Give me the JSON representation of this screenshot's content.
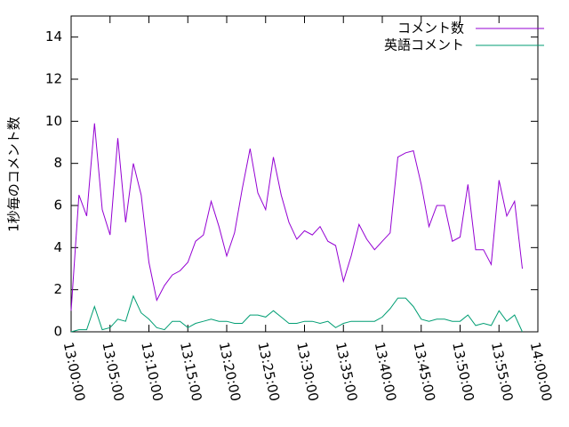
{
  "chart_data": {
    "type": "line",
    "y_label": "1秒毎のコメント数",
    "x": [
      "13:00:00",
      "13:01:00",
      "13:02:00",
      "13:03:00",
      "13:04:00",
      "13:05:00",
      "13:06:00",
      "13:07:00",
      "13:08:00",
      "13:09:00",
      "13:10:00",
      "13:11:00",
      "13:12:00",
      "13:13:00",
      "13:14:00",
      "13:15:00",
      "13:16:00",
      "13:17:00",
      "13:18:00",
      "13:19:00",
      "13:20:00",
      "13:21:00",
      "13:22:00",
      "13:23:00",
      "13:24:00",
      "13:25:00",
      "13:26:00",
      "13:27:00",
      "13:28:00",
      "13:29:00",
      "13:30:00",
      "13:31:00",
      "13:32:00",
      "13:33:00",
      "13:34:00",
      "13:35:00",
      "13:36:00",
      "13:37:00",
      "13:38:00",
      "13:39:00",
      "13:40:00",
      "13:41:00",
      "13:42:00",
      "13:43:00",
      "13:44:00",
      "13:45:00",
      "13:46:00",
      "13:47:00",
      "13:48:00",
      "13:49:00",
      "13:50:00",
      "13:51:00",
      "13:52:00",
      "13:53:00",
      "13:54:00",
      "13:55:00",
      "13:56:00",
      "13:57:00",
      "13:58:00"
    ],
    "series": [
      {
        "name": "コメント数",
        "color": "#9400d3",
        "values": [
          1.0,
          6.5,
          5.5,
          9.9,
          5.8,
          4.6,
          9.2,
          5.2,
          8.0,
          6.5,
          3.3,
          1.5,
          2.2,
          2.7,
          2.9,
          3.3,
          4.3,
          4.6,
          6.2,
          5.0,
          3.6,
          4.7,
          6.8,
          8.7,
          6.6,
          5.8,
          8.3,
          6.5,
          5.2,
          4.4,
          4.8,
          4.6,
          5.0,
          4.3,
          4.1,
          2.4,
          3.6,
          5.1,
          4.4,
          3.9,
          4.3,
          4.7,
          8.3,
          8.5,
          8.6,
          7.0,
          5.0,
          6.0,
          6.0,
          4.3,
          4.5,
          7.0,
          3.9,
          3.9,
          3.2,
          7.2,
          5.5,
          6.2,
          3.0
        ]
      },
      {
        "name": "英語コメント",
        "color": "#009e73",
        "values": [
          0.0,
          0.1,
          0.1,
          1.2,
          0.1,
          0.2,
          0.6,
          0.5,
          1.7,
          0.9,
          0.6,
          0.2,
          0.1,
          0.5,
          0.5,
          0.2,
          0.4,
          0.5,
          0.6,
          0.5,
          0.5,
          0.4,
          0.4,
          0.8,
          0.8,
          0.7,
          1.0,
          0.7,
          0.4,
          0.4,
          0.5,
          0.5,
          0.4,
          0.5,
          0.2,
          0.4,
          0.5,
          0.5,
          0.5,
          0.5,
          0.7,
          1.1,
          1.6,
          1.6,
          1.2,
          0.6,
          0.5,
          0.6,
          0.6,
          0.5,
          0.5,
          0.8,
          0.3,
          0.4,
          0.3,
          1.0,
          0.5,
          0.8,
          0.0
        ]
      }
    ],
    "xlim": [
      "13:00:00",
      "14:00:00"
    ],
    "xticks": [
      "13:00:00",
      "13:05:00",
      "13:10:00",
      "13:15:00",
      "13:20:00",
      "13:25:00",
      "13:30:00",
      "13:35:00",
      "13:40:00",
      "13:45:00",
      "13:50:00",
      "13:55:00",
      "14:00:00"
    ],
    "ylim": [
      0,
      15
    ],
    "yticks": [
      0,
      2,
      4,
      6,
      8,
      10,
      12,
      14
    ],
    "legend": "top-right"
  }
}
